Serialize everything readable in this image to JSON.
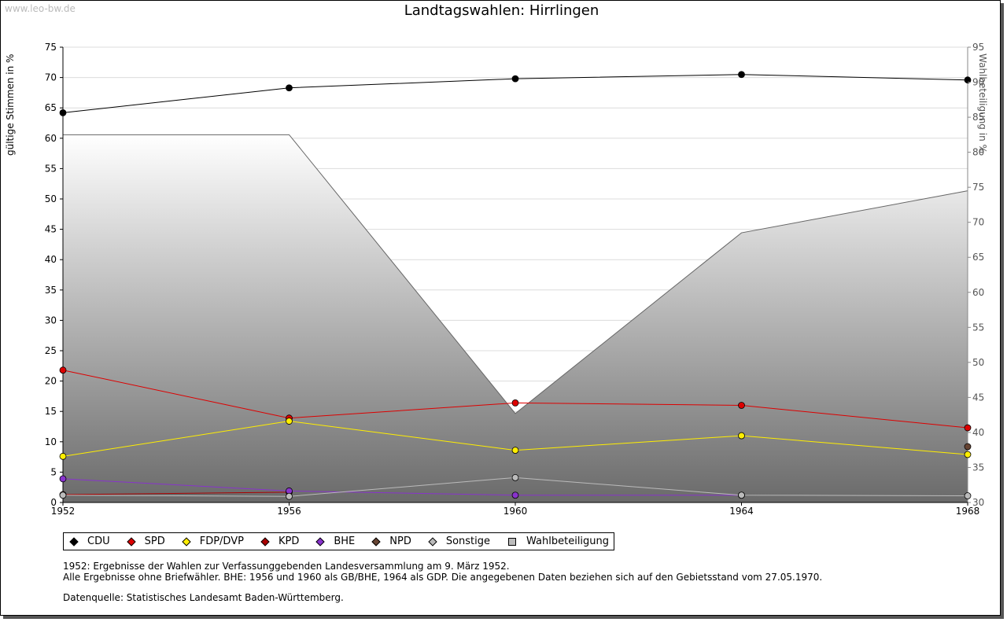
{
  "watermark": "www.leo-bw.de",
  "chart_data": {
    "type": "line",
    "title": "Landtagswahlen: Hirrlingen",
    "ylabel": "gültige Stimmen in %",
    "ylabel_right": "Wahlbeteiligung in %",
    "x": [
      "1952",
      "1956",
      "1960",
      "1964",
      "1968"
    ],
    "ylim": [
      0,
      75
    ],
    "yticks": [
      0,
      5,
      10,
      15,
      20,
      25,
      30,
      35,
      40,
      45,
      50,
      55,
      60,
      65,
      70,
      75
    ],
    "ylim_right": [
      30,
      95
    ],
    "yticks_right": [
      30,
      35,
      40,
      45,
      50,
      55,
      60,
      65,
      70,
      75,
      80,
      85,
      90,
      95
    ],
    "grid": true,
    "series": [
      {
        "name": "CDU",
        "color": "#000000",
        "values": [
          64.2,
          68.3,
          69.8,
          70.5,
          69.6
        ]
      },
      {
        "name": "SPD",
        "color": "#dd0000",
        "values": [
          21.8,
          13.9,
          16.4,
          16.0,
          12.3
        ]
      },
      {
        "name": "FDP/DVP",
        "color": "#ffee00",
        "values": [
          7.6,
          13.4,
          8.6,
          11.0,
          7.9
        ]
      },
      {
        "name": "KPD",
        "color": "#aa0000",
        "values": [
          1.3,
          1.7,
          null,
          null,
          null
        ]
      },
      {
        "name": "BHE",
        "color": "#8833cc",
        "values": [
          3.9,
          1.9,
          1.2,
          1.2,
          null
        ]
      },
      {
        "name": "NPD",
        "color": "#664433",
        "values": [
          null,
          null,
          null,
          null,
          9.2
        ]
      },
      {
        "name": "Sonstige",
        "color": "#bbbbbb",
        "values": [
          1.2,
          1.0,
          4.1,
          1.2,
          1.1
        ]
      }
    ],
    "turnout": {
      "name": "Wahlbeteiligung",
      "axis": "right",
      "values": [
        82.5,
        82.5,
        42.7,
        68.5,
        74.5
      ]
    }
  },
  "legend": [
    "CDU",
    "SPD",
    "FDP/DVP",
    "KPD",
    "BHE",
    "NPD",
    "Sonstige",
    "Wahlbeteiligung"
  ],
  "notes": {
    "line1": "1952: Ergebnisse der Wahlen zur Verfassunggebenden Landesversammlung am 9. März 1952.",
    "line2": "Alle Ergebnisse ohne Briefwähler. BHE: 1956 und 1960 als GB/BHE, 1964 als GDP. Die angegebenen Daten beziehen sich auf den Gebietsstand vom 27.05.1970.",
    "source": "Datenquelle: Statistisches Landesamt Baden-Württemberg."
  }
}
